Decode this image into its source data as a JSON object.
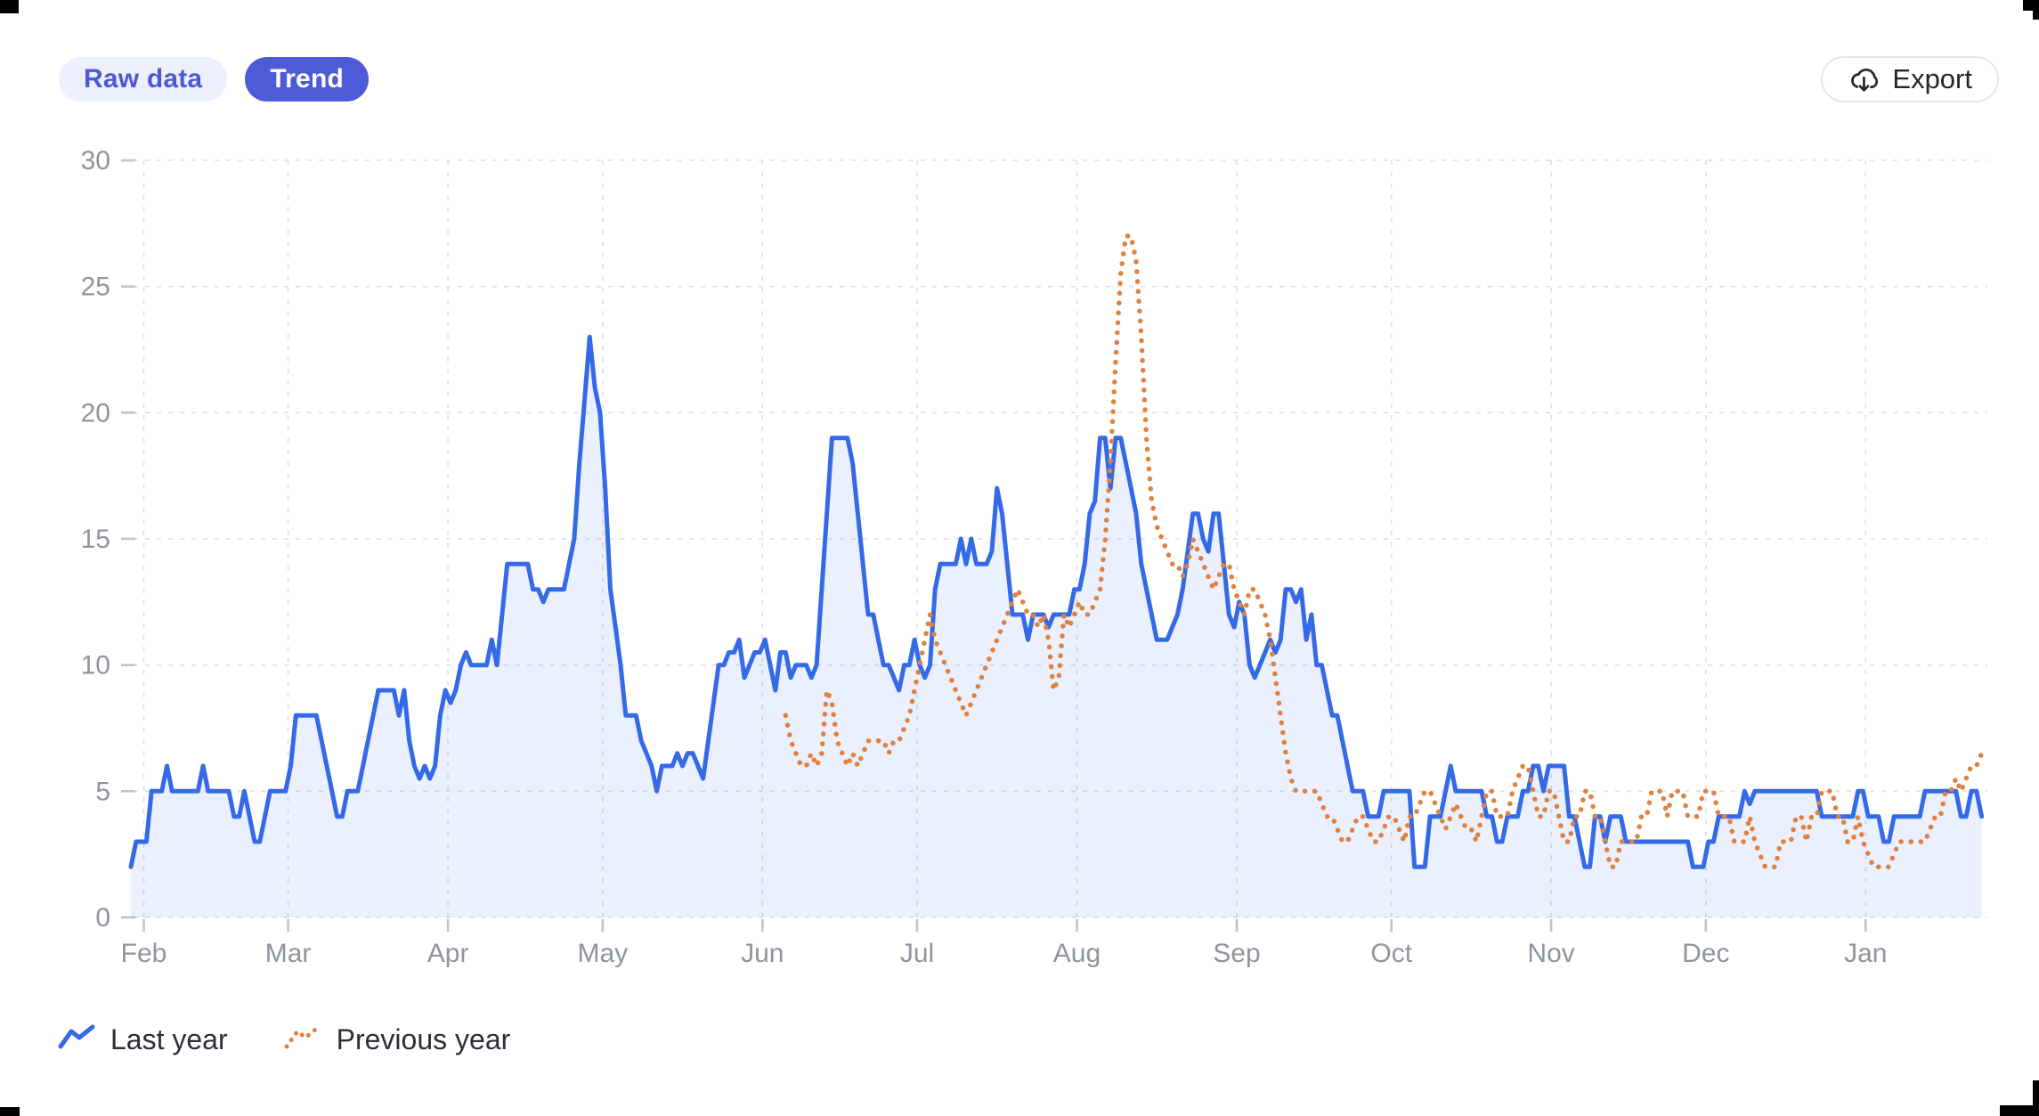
{
  "toolbar": {
    "raw_data_label": "Raw data",
    "trend_label": "Trend",
    "export_label": "Export"
  },
  "legend": [
    {
      "label": "Last year",
      "color": "#3469e8",
      "style": "solid"
    },
    {
      "label": "Previous year",
      "color": "#e08140",
      "style": "dotted"
    }
  ],
  "colors": {
    "accent_indigo": "#4d5cd6",
    "accent_indigo_light_bg": "#edeffc",
    "accent_indigo_text": "#4b5ad0",
    "blue_line": "#3469e8",
    "blue_area": "rgba(52,105,232,0.10)",
    "orange_line": "#e08140",
    "axis_text": "#8f949e",
    "grid_line": "#dcdfe6",
    "tick_mark": "#bfc3cc",
    "export_text": "#232629"
  },
  "chart_data": {
    "type": "line",
    "title": "",
    "xlabel": "",
    "ylabel": "",
    "ylim": [
      0,
      30
    ],
    "y_ticks": [
      0,
      5,
      10,
      15,
      20,
      25,
      30
    ],
    "x_tick_labels": [
      "Feb",
      "Mar",
      "Apr",
      "May",
      "Jun",
      "Jul",
      "Aug",
      "Sep",
      "Oct",
      "Nov",
      "Dec",
      "Jan"
    ],
    "month_tick_days": [
      2.5,
      30.5,
      61.5,
      91.5,
      122.5,
      152.5,
      183.5,
      214.5,
      244.5,
      275.5,
      305.5,
      336.5
    ],
    "days_total": 360,
    "grid": true,
    "legend_position": "bottom-left",
    "series": [
      {
        "name": "Last year",
        "style": "solid",
        "color": "#3469e8",
        "area_fill": "rgba(52,105,232,0.10)",
        "start_index": 0,
        "values": [
          2,
          3,
          3,
          3,
          5,
          5,
          5,
          6,
          5,
          5,
          5,
          5,
          5,
          5,
          6,
          5,
          5,
          5,
          5,
          5,
          4,
          4,
          5,
          4,
          3,
          3,
          4,
          5,
          5,
          5,
          5,
          6,
          8,
          8,
          8,
          8,
          8,
          7,
          6,
          5,
          4,
          4,
          5,
          5,
          5,
          6,
          7,
          8,
          9,
          9,
          9,
          9,
          8,
          9,
          7,
          6,
          5.5,
          6,
          5.5,
          6,
          8,
          9,
          8.5,
          9,
          10,
          10.5,
          10,
          10,
          10,
          10,
          11,
          10,
          12,
          14,
          14,
          14,
          14,
          14,
          13,
          13,
          12.5,
          13,
          13,
          13,
          13,
          14,
          15,
          18,
          20.5,
          23,
          21,
          20,
          17,
          13,
          11.5,
          10,
          8,
          8,
          8,
          7,
          6.5,
          6,
          5,
          6,
          6,
          6,
          6.5,
          6,
          6.5,
          6.5,
          6,
          5.5,
          7,
          8.5,
          10,
          10,
          10.5,
          10.5,
          11,
          9.5,
          10,
          10.5,
          10.5,
          11,
          10,
          9,
          10.5,
          10.5,
          9.5,
          10,
          10,
          10,
          9.5,
          10,
          13,
          16,
          19,
          19,
          19,
          19,
          18,
          16,
          14,
          12,
          12,
          11,
          10,
          10,
          9.5,
          9,
          10,
          10,
          11,
          10,
          9.5,
          10,
          13,
          14,
          14,
          14,
          14,
          15,
          14,
          15,
          14,
          14,
          14,
          14.5,
          17,
          16,
          14,
          12,
          12,
          12,
          11,
          12,
          12,
          12,
          11.5,
          12,
          12,
          12,
          12,
          13,
          13,
          14,
          16,
          16.5,
          19,
          19,
          17,
          19,
          19,
          18,
          17,
          16,
          14,
          13,
          12,
          11,
          11,
          11,
          11.5,
          12,
          13,
          14.5,
          16,
          16,
          15,
          14.5,
          16,
          16,
          14,
          12,
          11.5,
          12.5,
          12,
          10,
          9.5,
          10,
          10.5,
          11,
          10.5,
          11,
          13,
          13,
          12.5,
          13,
          11,
          12,
          10,
          10,
          9,
          8,
          8,
          7,
          6,
          5,
          5,
          5,
          4,
          4,
          4,
          5,
          5,
          5,
          5,
          5,
          5,
          2,
          2,
          2,
          4,
          4,
          4,
          5,
          6,
          5,
          5,
          5,
          5,
          5,
          5,
          4,
          4,
          3,
          3,
          4,
          4,
          4,
          5,
          5,
          6,
          6,
          5,
          6,
          6,
          6,
          6,
          4,
          4,
          3,
          2,
          2,
          4,
          4,
          3,
          4,
          4,
          4,
          3,
          3,
          3,
          3,
          3,
          3,
          3,
          3,
          3,
          3,
          3,
          3,
          3,
          2,
          2,
          2,
          3,
          3,
          4,
          4,
          4,
          4,
          4,
          5,
          4.5,
          5,
          5,
          5,
          5,
          5,
          5,
          5,
          5,
          5,
          5,
          5,
          5,
          5,
          4,
          4,
          4,
          4,
          4,
          4,
          4,
          5,
          5,
          4,
          4,
          4,
          3,
          3,
          4,
          4,
          4,
          4,
          4,
          4,
          5,
          5,
          5,
          5,
          5,
          5,
          5,
          4,
          4,
          5,
          5,
          4
        ]
      },
      {
        "name": "Previous year",
        "style": "dotted",
        "color": "#e08140",
        "area_fill": null,
        "start_index": 127,
        "values": [
          8,
          7,
          6.5,
          6,
          6,
          6.5,
          6,
          6.5,
          9,
          8.5,
          7,
          6.5,
          6,
          6.5,
          6,
          6.5,
          7,
          7,
          7,
          7,
          6.5,
          7,
          7,
          7.5,
          8,
          9,
          10,
          11,
          12,
          11,
          10.5,
          10,
          9.5,
          9,
          8.5,
          8,
          8.5,
          9,
          9.5,
          10,
          10.5,
          11,
          11.5,
          12,
          12.5,
          13,
          12.5,
          12,
          12,
          11.5,
          12,
          11,
          9,
          9.5,
          12,
          11.5,
          12,
          12.5,
          12,
          12,
          12.5,
          13,
          15,
          18,
          22,
          25.5,
          27,
          27,
          26,
          23,
          19,
          16.5,
          15.5,
          15,
          14.5,
          14,
          14,
          13.5,
          14,
          15,
          14.5,
          14,
          13.5,
          13,
          13.5,
          14,
          14,
          13,
          12.5,
          12,
          13,
          13,
          12.5,
          12,
          11,
          9.5,
          8,
          6.5,
          5.5,
          5,
          5,
          5,
          5,
          5,
          4.5,
          4,
          4,
          3.5,
          3,
          3,
          3.5,
          4,
          4,
          3.5,
          3,
          3,
          3.5,
          4,
          4,
          3.5,
          3,
          4,
          4,
          4.5,
          5,
          5,
          4.5,
          4,
          3.5,
          4,
          4.5,
          4,
          3.5,
          3.5,
          3,
          4,
          5,
          5,
          4,
          4,
          4,
          5,
          5.5,
          6,
          6,
          5,
          4,
          4,
          5,
          5,
          4,
          3,
          3,
          4,
          4,
          5,
          5,
          4,
          4,
          3,
          2,
          2,
          3,
          3,
          3,
          3,
          4,
          4,
          5,
          5,
          5,
          4,
          5,
          5,
          5,
          4,
          4,
          4,
          5,
          5,
          5,
          4,
          4,
          4,
          3,
          3,
          3,
          4,
          3,
          2.5,
          2,
          2,
          2,
          3,
          3,
          3,
          4,
          4,
          3,
          4,
          4,
          5,
          5,
          5,
          4,
          4,
          3,
          3,
          4,
          3,
          2.5,
          2,
          2,
          2,
          2,
          2.5,
          3,
          3,
          3,
          3,
          3,
          3,
          3.5,
          4,
          4,
          5,
          5,
          5.5,
          5,
          5.5,
          6,
          6,
          6.5
        ]
      }
    ]
  }
}
